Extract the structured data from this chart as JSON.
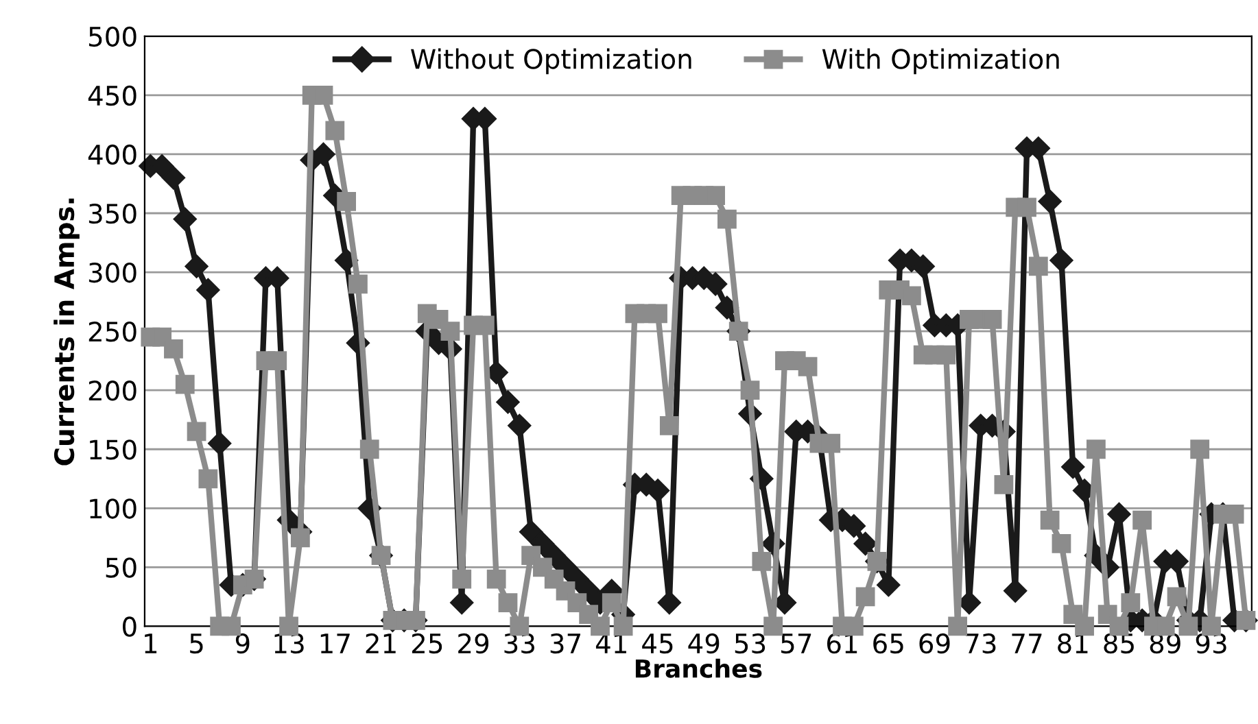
{
  "chart_data": {
    "type": "line",
    "xlabel": "Branches",
    "ylabel": "Currents in Amps.",
    "categories": [
      "1",
      null,
      null,
      null,
      "5",
      null,
      null,
      null,
      "9",
      null,
      null,
      null,
      "13",
      null,
      null,
      null,
      "17",
      null,
      null,
      null,
      "21",
      null,
      null,
      null,
      "25",
      null,
      null,
      null,
      "29",
      null,
      null,
      null,
      "33",
      null,
      null,
      null,
      "37",
      null,
      null,
      null,
      "41",
      null,
      null,
      null,
      "45",
      null,
      null,
      null,
      "49",
      null,
      null,
      null,
      "53",
      null,
      null,
      null,
      "57",
      null,
      null,
      null,
      "61",
      null,
      null,
      null,
      "65",
      null,
      null,
      null,
      "69",
      null,
      null,
      null,
      "73",
      null,
      null,
      null,
      "77",
      null,
      null,
      null,
      "81",
      null,
      null,
      null,
      "85",
      null,
      null,
      null,
      "89",
      null,
      null,
      null,
      "93",
      null,
      null,
      null
    ],
    "series": [
      {
        "name": "Without Optimization",
        "color": "#1a1a1a",
        "marker": "diamond",
        "values": [
          390,
          390,
          380,
          345,
          305,
          285,
          155,
          35,
          35,
          40,
          295,
          295,
          90,
          80,
          395,
          400,
          365,
          310,
          240,
          100,
          60,
          5,
          5,
          5,
          250,
          240,
          235,
          20,
          430,
          430,
          215,
          190,
          170,
          80,
          70,
          60,
          50,
          40,
          30,
          20,
          30,
          10,
          120,
          120,
          115,
          20,
          295,
          295,
          295,
          290,
          270,
          250,
          180,
          125,
          70,
          20,
          165,
          165,
          160,
          90,
          90,
          85,
          70,
          55,
          35,
          310,
          310,
          305,
          255,
          255,
          255,
          20,
          170,
          170,
          165,
          30,
          405,
          405,
          360,
          310,
          135,
          115,
          60,
          50,
          95,
          5,
          5,
          5,
          55,
          55,
          5,
          5,
          95,
          95,
          5,
          5
        ]
      },
      {
        "name": "With Optimization",
        "color": "#8c8c8c",
        "marker": "square",
        "values": [
          245,
          245,
          235,
          205,
          165,
          125,
          0,
          0,
          35,
          40,
          225,
          225,
          0,
          75,
          450,
          450,
          420,
          360,
          290,
          150,
          60,
          5,
          5,
          5,
          265,
          260,
          250,
          40,
          255,
          255,
          40,
          20,
          0,
          60,
          50,
          40,
          30,
          20,
          10,
          0,
          20,
          0,
          265,
          265,
          265,
          170,
          365,
          365,
          365,
          365,
          345,
          250,
          200,
          55,
          0,
          225,
          225,
          220,
          155,
          155,
          0,
          0,
          25,
          55,
          285,
          285,
          280,
          230,
          230,
          230,
          0,
          260,
          260,
          260,
          120,
          355,
          355,
          305,
          90,
          70,
          10,
          0,
          150,
          10,
          0,
          20,
          90,
          0,
          0,
          25,
          0,
          150,
          0,
          95,
          95,
          5
        ]
      }
    ],
    "ylim": [
      0,
      500
    ],
    "yticks": [
      0,
      50,
      100,
      150,
      200,
      250,
      300,
      350,
      400,
      450,
      500
    ],
    "grid": "y",
    "legend": "top",
    "line_style": "solid"
  }
}
